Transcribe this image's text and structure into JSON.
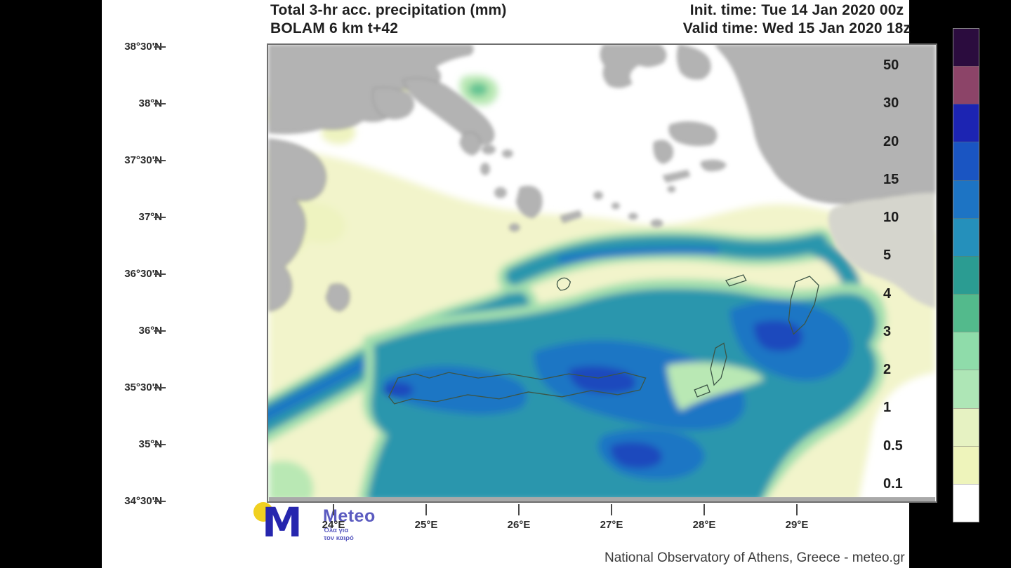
{
  "header": {
    "title_line1": "Total 3-hr acc. precipitation (mm)",
    "title_line2": "BOLAM 6 km t+42",
    "init_time": "Init. time: Tue 14 Jan 2020 00z",
    "valid_time": "Valid time: Wed 15 Jan 2020 18z"
  },
  "map": {
    "lat_labels": [
      "38°30'N",
      "38°N",
      "37°30'N",
      "37°N",
      "36°30'N",
      "36°N",
      "35°30'N",
      "35°N",
      "34°30'N"
    ],
    "lon_labels": [
      "24°E",
      "25°E",
      "26°E",
      "27°E",
      "28°E",
      "29°E"
    ]
  },
  "colorbar": {
    "tick_labels": [
      "50",
      "30",
      "20",
      "15",
      "10",
      "5",
      "4",
      "3",
      "2",
      "1",
      "0.5",
      "0.1"
    ],
    "segment_colors": [
      "#2b0c3e",
      "#8c4468",
      "#1c24b2",
      "#1a55c2",
      "#1d74c4",
      "#2590bb",
      "#2b9c92",
      "#53ba8c",
      "#8fdcaa",
      "#aee6b6",
      "#e6f2c2",
      "#eef4bb",
      "#ffffff"
    ]
  },
  "footer": {
    "logo_name": "Meteo",
    "logo_tagline_line1": "Όλα για",
    "logo_tagline_line2": "τον καιρό",
    "attribution": "National Observatory of Athens, Greece - meteo.gr"
  },
  "palette": {
    "sea": "#ffffff",
    "wash": "#f2f4cb",
    "wash_patch": "#eef3c0",
    "green_fringe": "#a3dfae",
    "light_green": "#b9e8b4",
    "green": "#63c493",
    "teal": "#2b96ad",
    "blue": "#1e76c4",
    "deep_blue": "#1a49bd",
    "land": "#b3b3b3",
    "land_light": "#d5d5cd",
    "land_stroke": "#858585",
    "coast_outline": "#3c5546",
    "logo_blue": "#2626ae",
    "logo_text_blue": "#5b5bc0",
    "logo_yellow": "#f0d020"
  }
}
